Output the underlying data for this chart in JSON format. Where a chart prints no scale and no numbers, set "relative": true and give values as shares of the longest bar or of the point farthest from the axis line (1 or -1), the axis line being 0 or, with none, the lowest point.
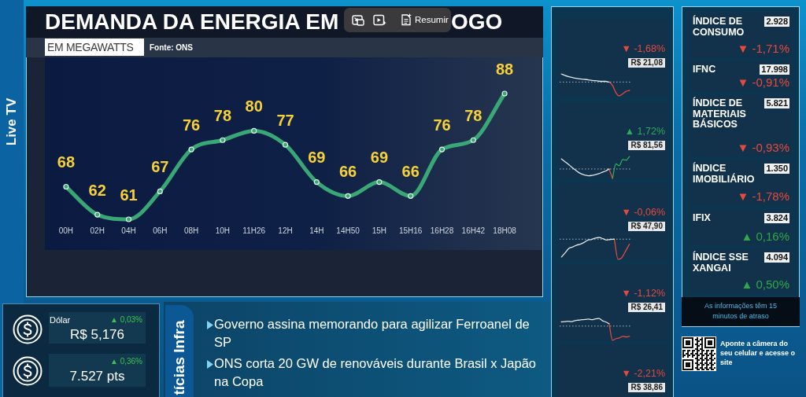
{
  "chart_data": [
    {
      "type": "other",
      "title": "Live TV"
    },
    {
      "type": "line",
      "title": "DEMANDA DA ENERGIA EM",
      "subtitle": "EM MEGAWATTS",
      "annotations": [
        "OGO",
        "Fonte: ONS"
      ],
      "categories": [
        "00H",
        "02H",
        "04H",
        "06H",
        "08H",
        "10H",
        "11H26",
        "12H",
        "14H",
        "14H50",
        "15H",
        "15H16",
        "16H28",
        "16H42",
        "18H08"
      ],
      "values": [
        68,
        62,
        61,
        67,
        76,
        78,
        80,
        77,
        69,
        66,
        69,
        66,
        76,
        78,
        88
      ],
      "color": "#3aa876",
      "marker": "circle",
      "data_labels": true,
      "tick_labels": "x"
    },
    {
      "type": "other",
      "annotations": [
        "Resumir"
      ]
    },
    {
      "type": "line",
      "relative": true,
      "categories": [
        null,
        null,
        null,
        null,
        null,
        null,
        null,
        null,
        null,
        null,
        null,
        null,
        null,
        null,
        null,
        null,
        null,
        null,
        null,
        null,
        null
      ],
      "series": [
        {
          "color": "#e4e6e8",
          "values": [
            1,
            0.93,
            0.88,
            0.84,
            0.81,
            0.78,
            0.76,
            0.75,
            0.73,
            0.7,
            0.69,
            0.67,
            0.66,
            0.66,
            0.63,
            null,
            null,
            null,
            null,
            null,
            null
          ]
        },
        {
          "color": "#e5493f",
          "values": [
            null,
            null,
            null,
            null,
            null,
            null,
            null,
            null,
            null,
            null,
            null,
            null,
            null,
            null,
            0.63,
            0.48,
            0.15,
            0,
            0.1,
            0.21,
            0.25
          ]
        }
      ],
      "ref_lines": [
        {
          "axis": "y",
          "value": 0.63,
          "line_style": "dotted",
          "color": "#a9b4bc"
        }
      ],
      "annotations": [
        "▼ -1,68%",
        "R$ 21,08"
      ]
    },
    {
      "type": "line",
      "relative": true,
      "categories": [
        null,
        null,
        null,
        null,
        null,
        null,
        null,
        null,
        null,
        null,
        null,
        null,
        null,
        null,
        null,
        null,
        null,
        null,
        null,
        null,
        null
      ],
      "series": [
        {
          "color": "#e4e6e8",
          "values": [
            0.89,
            0.77,
            0.65,
            0.52,
            0.4,
            0.28,
            0.2,
            0.15,
            0.12,
            0.14,
            0.17,
            0.22,
            0.28,
            0.34,
            0.43,
            null,
            null,
            null,
            null,
            null,
            null
          ]
        },
        {
          "color": "#e5493f",
          "values": [
            null,
            null,
            null,
            null,
            null,
            null,
            null,
            null,
            null,
            null,
            null,
            null,
            null,
            null,
            0.43,
            0,
            null,
            null,
            null,
            null,
            null
          ]
        },
        {
          "color": "#2eaa5e",
          "values": [
            null,
            null,
            null,
            null,
            null,
            null,
            null,
            null,
            null,
            null,
            null,
            null,
            null,
            null,
            null,
            0,
            0.66,
            0.58,
            0.86,
            0.83,
            1
          ]
        }
      ],
      "ref_lines": [
        {
          "axis": "y",
          "value": 0.43,
          "line_style": "dotted",
          "color": "#a9b4bc"
        }
      ],
      "annotations": [
        "▲ 1,72%",
        "R$ 81,56"
      ]
    },
    {
      "type": "line",
      "relative": true,
      "categories": [
        null,
        null,
        null,
        null,
        null,
        null,
        null,
        null,
        null,
        null,
        null,
        null,
        null,
        null,
        null,
        null,
        null,
        null,
        null
      ],
      "series": [
        {
          "color": "#e4e6e8",
          "values": [
            0.11,
            0.31,
            0.51,
            0.57,
            0.65,
            0.69,
            0.77,
            0.88,
            0.91,
            0.97,
            1,
            0.94,
            0.88,
            0.91,
            0.92,
            null,
            null,
            null,
            null
          ]
        },
        {
          "color": "#e5493f",
          "values": [
            null,
            null,
            null,
            null,
            null,
            null,
            null,
            null,
            null,
            null,
            null,
            null,
            null,
            null,
            0.92,
            0,
            0.08,
            0.38,
            0.69
          ]
        }
      ],
      "ref_lines": [
        {
          "axis": "y",
          "value": 0.92,
          "line_style": "dotted",
          "color": "#a9b4bc"
        }
      ],
      "annotations": [
        "▼ -0,06%",
        "R$ 47,90"
      ]
    },
    {
      "type": "line",
      "relative": true,
      "categories": [
        null,
        null,
        null,
        null,
        null,
        null,
        null,
        null,
        null,
        null,
        null,
        null,
        null,
        null,
        null,
        null,
        null,
        null,
        null,
        null,
        null
      ],
      "series": [
        {
          "color": "#e4e6e8",
          "values": [
            0.84,
            0.85,
            0.87,
            0.85,
            0.9,
            0.92,
            0.94,
            0.95,
            0.97,
            0.94,
            0.98,
            1,
            0.9,
            0.84,
            0.76,
            null,
            null,
            null,
            null,
            null,
            null
          ]
        },
        {
          "color": "#e5493f",
          "values": [
            null,
            null,
            null,
            null,
            null,
            null,
            null,
            null,
            null,
            null,
            null,
            null,
            null,
            null,
            0.76,
            0,
            0.08,
            0.11,
            0.18,
            0.16,
            0.19
          ]
        }
      ],
      "ref_lines": [
        {
          "axis": "y",
          "value": 0.65,
          "line_style": "dotted",
          "color": "#a9b4bc"
        }
      ],
      "annotations": [
        "▼ -1,12%",
        "R$ 26,41"
      ]
    },
    {
      "type": "other",
      "annotations": [
        "▼ -2,21%",
        "R$ 38,86"
      ],
      "color": "#e5493f"
    },
    {
      "type": "other",
      "title": "ÍNDICE DE CONSUMO",
      "annotations": [
        "2.928",
        "▼ -1,71%"
      ],
      "color": "#e5493f"
    },
    {
      "type": "other",
      "title": "IFNC",
      "annotations": [
        "17.998",
        "▼ -0,91%"
      ],
      "color": "#e5493f"
    },
    {
      "type": "other",
      "title": "ÍNDICE DE MATERIAIS BÁSICOS",
      "annotations": [
        "5.821",
        "▼ -0,93%"
      ],
      "color": "#e5493f"
    },
    {
      "type": "other",
      "title": "ÍNDICE IMOBILIÁRIO",
      "annotations": [
        "1.350",
        "▼ -1,78%"
      ],
      "color": "#e5493f"
    },
    {
      "type": "other",
      "title": "IFIX",
      "annotations": [
        "3.824",
        "▲ 0,16%"
      ],
      "color": "#2ea84a"
    },
    {
      "type": "other",
      "title": "ÍNDICE SSE XANGAI",
      "annotations": [
        "4.094",
        "▲ 0,50%"
      ],
      "color": "#2ea84a"
    },
    {
      "type": "other",
      "annotations": [
        "As informações têm 15 minutos de atraso"
      ]
    },
    {
      "type": "other",
      "annotations": [
        "Aponte a câmera do seu celular e acesse o site"
      ]
    },
    {
      "type": "other",
      "title": "Dólar",
      "annotations": [
        "R$ 5,176",
        "▲ 0,03%"
      ],
      "color": "#3cc24f"
    },
    {
      "type": "other",
      "annotations": [
        "7.527 pts",
        "▲ 0,36%"
      ],
      "color": "#3cc24f"
    },
    {
      "type": "other",
      "title": "tícias Infra",
      "annotations": [
        "Governo assina memorando para agilizar Ferroanel de SP",
        "ONS corta 20 GW de renováveis durante Brasil x Japão na Copa"
      ]
    }
  ]
}
